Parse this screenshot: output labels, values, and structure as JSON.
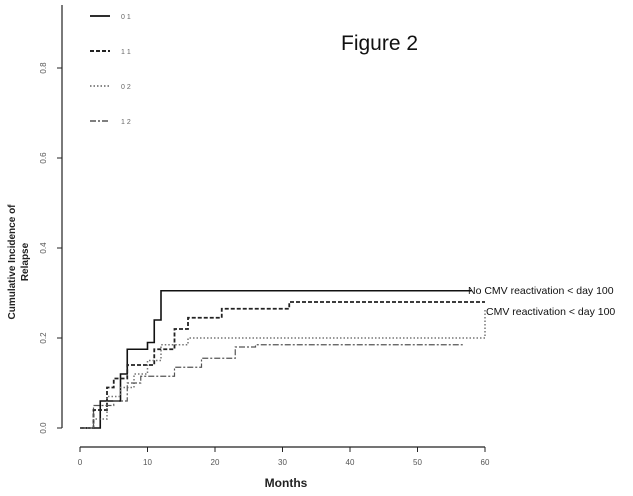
{
  "chart_data": {
    "type": "line",
    "step": true,
    "title": "Figure 2",
    "xlabel": "Months",
    "ylabel_line1": "Cumulative Incidence of",
    "ylabel_line2": "Relapse",
    "xlim": [
      0,
      60
    ],
    "ylim": [
      0,
      0.8
    ],
    "xticks": [
      0,
      10,
      20,
      30,
      40,
      50,
      60
    ],
    "yticks": [
      0.0,
      0.2,
      0.4,
      0.6,
      0.8
    ],
    "ytick_labels": [
      "0.0",
      "0.2",
      "0.4",
      "0.6",
      "0.8"
    ],
    "grid": false,
    "legend_position": "top-left",
    "annotations": [
      {
        "text": "No CMV reactivation < day 100",
        "x": 58,
        "y": 0.308
      },
      {
        "text": "CMV reactivation < day 100",
        "x": 60,
        "y": 0.255
      }
    ],
    "series": [
      {
        "name": "0 1",
        "style": "solid",
        "color": "#111111",
        "x": [
          0,
          3,
          6,
          7,
          10,
          11,
          12,
          58
        ],
        "y": [
          0,
          0.06,
          0.12,
          0.175,
          0.19,
          0.24,
          0.305,
          0.305
        ]
      },
      {
        "name": "1 1",
        "style": "dashed",
        "color": "#222222",
        "x": [
          0,
          2,
          4,
          5,
          7,
          11,
          14,
          16,
          21,
          27,
          31,
          60
        ],
        "y": [
          0,
          0.04,
          0.09,
          0.11,
          0.14,
          0.175,
          0.22,
          0.245,
          0.265,
          0.265,
          0.28,
          0.28
        ]
      },
      {
        "name": "0 2",
        "style": "dotted",
        "color": "#777777",
        "x": [
          0,
          2,
          4,
          6,
          8,
          10,
          12,
          16,
          60
        ],
        "y": [
          0,
          0.02,
          0.07,
          0.09,
          0.12,
          0.15,
          0.185,
          0.2,
          0.265
        ]
      },
      {
        "name": "1 2",
        "style": "dashdot",
        "color": "#555555",
        "x": [
          0,
          2,
          5,
          7,
          9,
          14,
          18,
          23,
          26,
          57
        ],
        "y": [
          0,
          0.05,
          0.06,
          0.1,
          0.115,
          0.135,
          0.155,
          0.18,
          0.185,
          0.185
        ]
      }
    ]
  }
}
